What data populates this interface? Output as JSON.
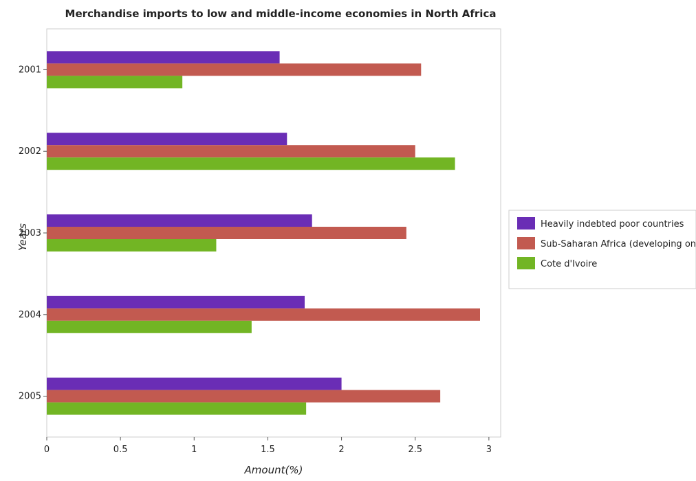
{
  "chart_data": {
    "type": "bar",
    "orientation": "horizontal",
    "title": "Merchandise imports to low and middle-income economies in North Africa",
    "xlabel": "Amount(%)",
    "ylabel": "Years",
    "categories": [
      "2001",
      "2002",
      "2003",
      "2004",
      "2005"
    ],
    "xlim": [
      0,
      3.08
    ],
    "xticks": [
      0,
      0.5,
      1,
      1.5,
      2,
      2.5,
      3
    ],
    "xtick_labels": [
      "0",
      "0.5",
      "1",
      "1.5",
      "2",
      "2.5",
      "3"
    ],
    "grid": false,
    "legend_position": "right",
    "series": [
      {
        "name": "Heavily indebted poor countries",
        "color": "#6a2db5",
        "values": [
          1.58,
          1.63,
          1.8,
          1.75,
          2.0
        ]
      },
      {
        "name": "Sub-Saharan Africa (developing only)",
        "color": "#c25a50",
        "values": [
          2.54,
          2.5,
          2.44,
          2.94,
          2.67
        ]
      },
      {
        "name": "Cote d'Ivoire",
        "color": "#72b524",
        "values": [
          0.92,
          2.77,
          1.15,
          1.39,
          1.76
        ]
      }
    ]
  }
}
